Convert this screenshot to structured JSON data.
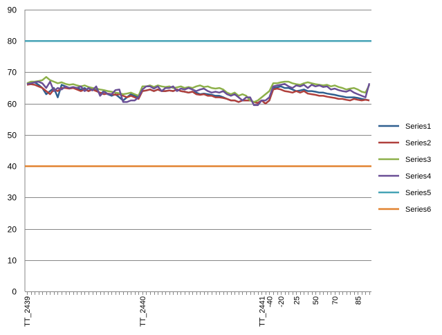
{
  "chart_data": {
    "type": "line",
    "title": "",
    "xlabel": "",
    "ylabel": "",
    "ylim": [
      0,
      90
    ],
    "yticks": [
      "0",
      "10",
      "20",
      "30",
      "40",
      "50",
      "60",
      "70",
      "80",
      "90"
    ],
    "grid": "horizontal",
    "legend_position": "right",
    "x_tick_labels": [
      "TT_2439",
      "TT_2440",
      "TT_2441",
      "-40",
      "-20",
      "25",
      "50",
      "70",
      "85"
    ],
    "n_points": 90,
    "series": [
      {
        "name": "Series1",
        "color": "#2E5F8F",
        "values": [
          66.2,
          66.5,
          66.8,
          66,
          65,
          63,
          64,
          65,
          62,
          66,
          65.5,
          65,
          65.2,
          65,
          64.5,
          65,
          64,
          65,
          64.5,
          63,
          64,
          63,
          62.5,
          63,
          62,
          61,
          62,
          63,
          62.5,
          62,
          64,
          64.2,
          64.5,
          64,
          64.5,
          64,
          64,
          64.2,
          64,
          64.5,
          64,
          63.8,
          63.5,
          63.8,
          63.5,
          63,
          63.2,
          63,
          62.8,
          62.5,
          62.5,
          62,
          61.5,
          61,
          61,
          60.5,
          61,
          61,
          61,
          60.5,
          60.2,
          61,
          60,
          61,
          65,
          65.2,
          65.5,
          65,
          65,
          64.5,
          64,
          64.2,
          64.5,
          64,
          64,
          63.8,
          63.5,
          63.5,
          63.2,
          63,
          62.8,
          62.5,
          62.3,
          62,
          62,
          62,
          61.8,
          61.5,
          61.3,
          61
        ]
      },
      {
        "name": "Series2",
        "color": "#B0403C",
        "values": [
          66,
          66.2,
          66,
          65.5,
          65,
          64,
          63,
          64.5,
          64,
          65,
          65,
          64.8,
          65,
          64.5,
          64,
          64.5,
          64,
          64.5,
          64,
          63.5,
          63,
          63.2,
          63,
          62.8,
          63,
          62.5,
          62,
          62.5,
          62,
          61.5,
          64,
          64.2,
          64.5,
          64,
          64.5,
          64,
          64,
          64.2,
          64,
          64.5,
          64,
          63.8,
          63.5,
          63.8,
          63,
          62.8,
          63,
          62.5,
          62.5,
          62,
          62,
          61.8,
          61.5,
          61,
          61,
          60.5,
          61,
          61,
          61,
          60.5,
          60.2,
          61,
          60,
          61,
          64.5,
          64.8,
          64.5,
          64,
          63.8,
          63.5,
          64,
          63.5,
          64,
          63.2,
          63,
          62.8,
          62.5,
          62.5,
          62.2,
          62,
          61.8,
          61.5,
          61.5,
          61.2,
          61,
          61.5,
          61.2,
          61,
          61.2,
          61
        ]
      },
      {
        "name": "Series3",
        "color": "#8DB04A",
        "values": [
          66.5,
          67,
          67,
          67.2,
          67.5,
          68.5,
          67.5,
          67,
          66.5,
          66.8,
          66.3,
          66,
          66.2,
          65.8,
          65.5,
          65.8,
          65.3,
          65,
          64.8,
          64.5,
          64.3,
          64,
          63.8,
          63.5,
          63.3,
          63,
          63.2,
          63.5,
          63,
          62.5,
          65.5,
          65.5,
          65.8,
          65.3,
          65.8,
          65.5,
          65.3,
          65.5,
          65,
          65.2,
          65.5,
          65,
          65.3,
          65,
          65.5,
          65.8,
          65.3,
          65.5,
          65,
          64.8,
          65,
          64.5,
          63.5,
          63,
          63.5,
          62.5,
          63,
          62.5,
          61,
          60.5,
          61,
          62,
          63,
          64,
          66.5,
          66.5,
          66.8,
          67,
          67,
          66.5,
          66.2,
          66,
          66.5,
          66.8,
          66.5,
          66.2,
          66,
          65.8,
          66,
          65.5,
          65.8,
          65.3,
          65,
          64.5,
          64.8,
          65,
          64.5,
          63.8,
          63.5,
          66
        ]
      },
      {
        "name": "Series4",
        "color": "#6A4F96",
        "values": [
          66.3,
          66.5,
          66.8,
          67,
          66.5,
          65,
          67,
          64,
          65,
          64.5,
          65.5,
          65,
          65.3,
          65,
          65.5,
          64,
          65,
          64.2,
          65.5,
          62.5,
          63.8,
          63,
          63,
          64.3,
          64.5,
          60.5,
          60.5,
          61,
          61,
          62,
          64.5,
          65.5,
          65.5,
          64.8,
          65.5,
          64,
          65,
          65,
          65.5,
          64,
          64.8,
          64.5,
          65,
          64.5,
          64,
          64.5,
          64.8,
          64,
          63.5,
          63.8,
          63.5,
          64,
          63,
          62.5,
          63,
          62,
          61,
          62,
          62,
          59.5,
          59.5,
          61,
          61,
          62,
          65.5,
          65.8,
          66,
          66.3,
          65.5,
          65,
          65.8,
          65.5,
          66,
          65,
          66,
          65.5,
          65.8,
          65.3,
          65.5,
          64.5,
          64.8,
          64.3,
          64,
          63.8,
          64.3,
          63.5,
          63,
          62.5,
          62,
          66.5
        ]
      },
      {
        "name": "Series5",
        "color": "#46A3B6",
        "constant": 80,
        "values": [
          80,
          80
        ]
      },
      {
        "name": "Series6",
        "color": "#E1822F",
        "constant": 40,
        "values": [
          40,
          40
        ]
      }
    ]
  }
}
